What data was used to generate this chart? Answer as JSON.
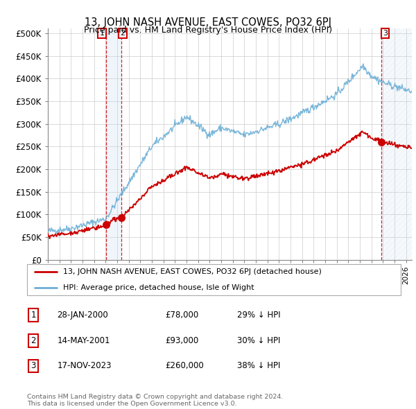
{
  "title": "13, JOHN NASH AVENUE, EAST COWES, PO32 6PJ",
  "subtitle": "Price paid vs. HM Land Registry's House Price Index (HPI)",
  "ylabel_ticks": [
    "£0",
    "£50K",
    "£100K",
    "£150K",
    "£200K",
    "£250K",
    "£300K",
    "£350K",
    "£400K",
    "£450K",
    "£500K"
  ],
  "ytick_values": [
    0,
    50000,
    100000,
    150000,
    200000,
    250000,
    300000,
    350000,
    400000,
    450000,
    500000
  ],
  "ylim": [
    0,
    510000
  ],
  "xlim_start": 1995.0,
  "xlim_end": 2026.5,
  "hpi_color": "#6baed6",
  "price_color": "#cc0000",
  "vline_color": "#cc0000",
  "shade_color": "#c6d9f0",
  "annotations": [
    {
      "label": "1",
      "date_num": 2000.07,
      "price": 78000
    },
    {
      "label": "2",
      "date_num": 2001.37,
      "price": 93000
    },
    {
      "label": "3",
      "date_num": 2023.88,
      "price": 260000
    }
  ],
  "legend_entries": [
    "13, JOHN NASH AVENUE, EAST COWES, PO32 6PJ (detached house)",
    "HPI: Average price, detached house, Isle of Wight"
  ],
  "table_rows": [
    {
      "num": "1",
      "date": "28-JAN-2000",
      "price": "£78,000",
      "hpi": "29% ↓ HPI"
    },
    {
      "num": "2",
      "date": "14-MAY-2001",
      "price": "£93,000",
      "hpi": "30% ↓ HPI"
    },
    {
      "num": "3",
      "date": "17-NOV-2023",
      "price": "£260,000",
      "hpi": "38% ↓ HPI"
    }
  ],
  "footnote": "Contains HM Land Registry data © Crown copyright and database right 2024.\nThis data is licensed under the Open Government Licence v3.0.",
  "future_shade_start": 2023.88,
  "future_shade_end": 2026.5
}
